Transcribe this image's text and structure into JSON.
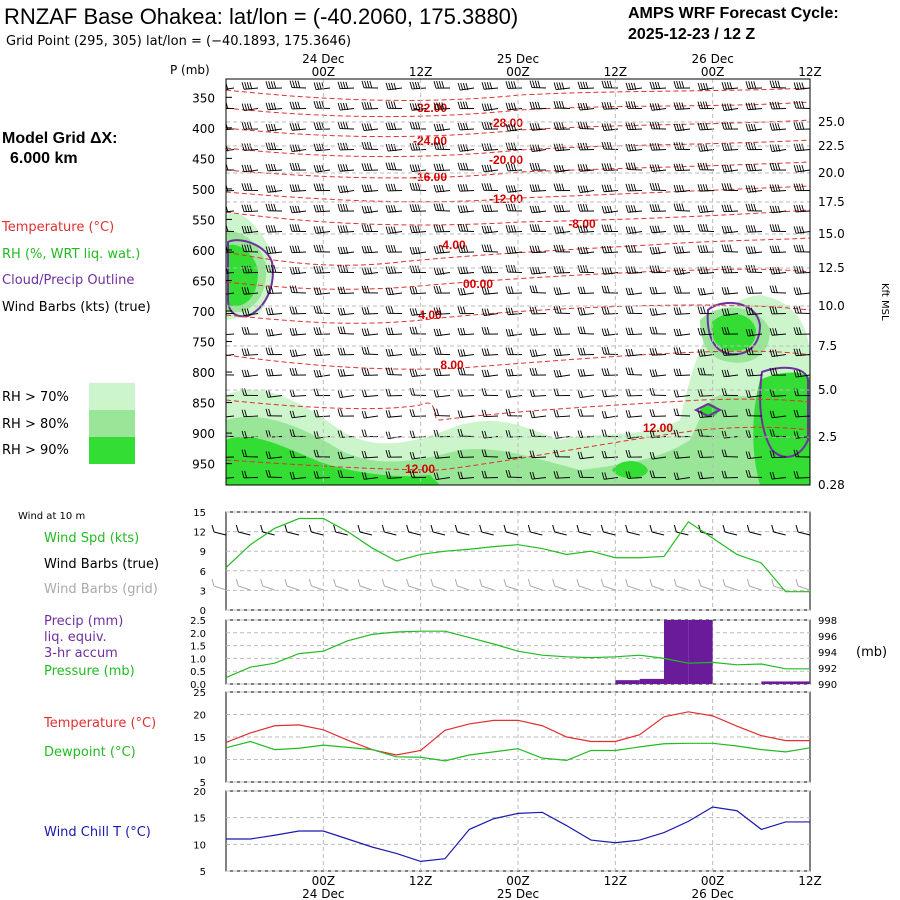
{
  "header": {
    "title": "RNZAF Base Ohakea:  lat/lon = (-40.2060, 175.3880)",
    "subtitle": "Grid Point (295, 305) lat/lon = (−40.1893, 175.3646)",
    "cycle_line1": "AMPS WRF Forecast Cycle:",
    "cycle_line2": "2025-12-23 / 12  Z"
  },
  "left_panel": {
    "model_grid_line1": "Model Grid ΔX:",
    "model_grid_line2": "6.000 km",
    "legend": [
      {
        "label": "Temperature (°C)",
        "color": "#e03030"
      },
      {
        "label": "RH (%, WRT liq. wat.)",
        "color": "#22bb22"
      },
      {
        "label": "Cloud/Precip Outline",
        "color": "#7030a0"
      },
      {
        "label": "Wind Barbs (kts) (true)",
        "color": "#000000"
      }
    ],
    "rh_boxes": [
      {
        "label": "RH > 70%",
        "color": "#ccf5cc"
      },
      {
        "label": "RH > 80%",
        "color": "#99e699"
      },
      {
        "label": "RH > 90%",
        "color": "#33dd33"
      }
    ]
  },
  "time_axis": {
    "top_day_labels": [
      "24 Dec",
      "25 Dec",
      "26 Dec"
    ],
    "hour_labels": [
      "00Z",
      "12Z",
      "00Z",
      "12Z",
      "00Z",
      "12Z"
    ],
    "bottom_day_labels": [
      "24 Dec",
      "25 Dec",
      "26 Dec"
    ]
  },
  "colors": {
    "temp": "#e03030",
    "rh": "#22bb22",
    "cloud": "#7030a0",
    "precip": "#6a1b9a",
    "windchill": "#1a1ab0",
    "grid": "#bbbbbb"
  },
  "chart_data": [
    {
      "type": "heatmap",
      "name": "cross-section",
      "ylabel": "P (mb)",
      "right_label": "Kft MSL",
      "pressure_ticks": [
        "350",
        "400",
        "450",
        "500",
        "550",
        "600",
        "650",
        "700",
        "750",
        "800",
        "850",
        "900",
        "950"
      ],
      "height_ticks": [
        "25.0",
        "22.5",
        "20.0",
        "17.5",
        "15.0",
        "12.5",
        "10.0",
        "7.5",
        "5.0",
        "2.5",
        "0.28"
      ],
      "temperature_contour_labels": [
        "-32.00",
        "-28.00",
        "-24.00",
        "-20.00",
        "-16.00",
        "-12.00",
        "-8.00",
        "-4.00",
        "00.00",
        "4.00",
        "8.00",
        "12.00",
        "12.00"
      ]
    },
    {
      "type": "line",
      "name": "wind",
      "title": "Wind at 10 m",
      "labels": [
        "Wind Spd (kts)",
        "Wind Barbs (true)",
        "Wind Barbs (grid)"
      ],
      "ylim": [
        0,
        15
      ],
      "yticks": [
        "15",
        "12",
        "9",
        "6",
        "3",
        "0"
      ],
      "series": [
        {
          "name": "Wind Spd (kts)",
          "x": [
            0,
            3,
            6,
            9,
            12,
            15,
            18,
            21,
            24,
            27,
            30,
            33,
            36,
            39,
            42,
            45,
            48,
            51,
            54,
            57,
            60,
            63,
            66,
            69,
            72
          ],
          "values": [
            6.5,
            10,
            12.5,
            14,
            14,
            12,
            9.5,
            7.5,
            8.5,
            9,
            9.3,
            9.7,
            10,
            9.4,
            8.5,
            9,
            8,
            8,
            8.2,
            13.5,
            11,
            8.5,
            7.2,
            2.8,
            2.8
          ]
        }
      ]
    },
    {
      "type": "bar",
      "name": "precip-pressure",
      "labels": [
        "Precip (mm)",
        "liq. equiv.",
        "3-hr accum",
        "Pressure (mb)"
      ],
      "right_label": "(mb)",
      "ylim": [
        0,
        2.5
      ],
      "yticks": [
        "2.5",
        "2.0",
        "1.5",
        "1.0",
        "0.5",
        "0.0"
      ],
      "y2lim": [
        990,
        998
      ],
      "y2ticks": [
        "998",
        "996",
        "994",
        "992",
        "990"
      ],
      "precip": {
        "x": [
          51,
          54,
          57,
          60,
          69,
          72
        ],
        "values": [
          0.15,
          0.2,
          2.5,
          2.5,
          0.1,
          0.1
        ]
      },
      "pressure": {
        "x": [
          0,
          3,
          6,
          9,
          12,
          15,
          18,
          21,
          24,
          27,
          30,
          33,
          36,
          39,
          42,
          45,
          48,
          51,
          54,
          57,
          60,
          63,
          66,
          69,
          72
        ],
        "values": [
          990.8,
          992.1,
          992.6,
          993.8,
          994.1,
          995.4,
          996.2,
          996.5,
          996.6,
          996.6,
          995.8,
          995.0,
          994.1,
          993.6,
          993.4,
          993.3,
          993.4,
          993.6,
          993.2,
          992.6,
          992.7,
          992.4,
          992.5,
          991.9,
          991.9
        ]
      }
    },
    {
      "type": "line",
      "name": "temperature-dewpoint",
      "labels": [
        "Temperature (°C)",
        "Dewpoint (°C)"
      ],
      "ylim": [
        5,
        25
      ],
      "yticks": [
        "25",
        "20",
        "15",
        "10",
        "5"
      ],
      "series": [
        {
          "name": "Temperature (°C)",
          "x": [
            0,
            3,
            6,
            9,
            12,
            15,
            18,
            21,
            24,
            27,
            30,
            33,
            36,
            39,
            42,
            45,
            48,
            51,
            54,
            57,
            60,
            63,
            66,
            69,
            72
          ],
          "values": [
            13.8,
            15.9,
            17.5,
            17.7,
            16.6,
            14.3,
            12.2,
            11,
            12,
            16.5,
            17.9,
            18.7,
            18.7,
            17.5,
            15,
            14,
            14,
            15.5,
            19.5,
            20.6,
            19.7,
            17.4,
            15.3,
            14.2,
            14.2
          ]
        },
        {
          "name": "Dewpoint (°C)",
          "x": [
            0,
            3,
            6,
            9,
            12,
            15,
            18,
            21,
            24,
            27,
            30,
            33,
            36,
            39,
            42,
            45,
            48,
            51,
            54,
            57,
            60,
            63,
            66,
            69,
            72
          ],
          "values": [
            12.6,
            14,
            12.2,
            12.5,
            13.2,
            12.7,
            12.2,
            10.6,
            10.5,
            9.7,
            11,
            11.7,
            12.4,
            10.3,
            9.8,
            12,
            12,
            12.8,
            13.5,
            13.6,
            13.6,
            13,
            12.2,
            11.7,
            12.6
          ]
        }
      ]
    },
    {
      "type": "line",
      "name": "wind-chill",
      "labels": [
        "Wind Chill T (°C)"
      ],
      "ylim": [
        5,
        20
      ],
      "yticks": [
        "20",
        "15",
        "10",
        "5"
      ],
      "series": [
        {
          "name": "Wind Chill T (°C)",
          "x": [
            0,
            3,
            6,
            9,
            12,
            15,
            18,
            21,
            24,
            27,
            30,
            33,
            36,
            39,
            42,
            45,
            48,
            51,
            54,
            57,
            60,
            63,
            66,
            69,
            72
          ],
          "values": [
            11,
            11,
            11.7,
            12.5,
            12.5,
            11,
            9.5,
            8.3,
            6.8,
            7.3,
            12.8,
            14.8,
            15.8,
            16,
            13.5,
            10.8,
            10.3,
            10.8,
            12.2,
            14.3,
            17,
            16.3,
            12.8,
            14.2,
            14.2
          ]
        }
      ]
    }
  ]
}
